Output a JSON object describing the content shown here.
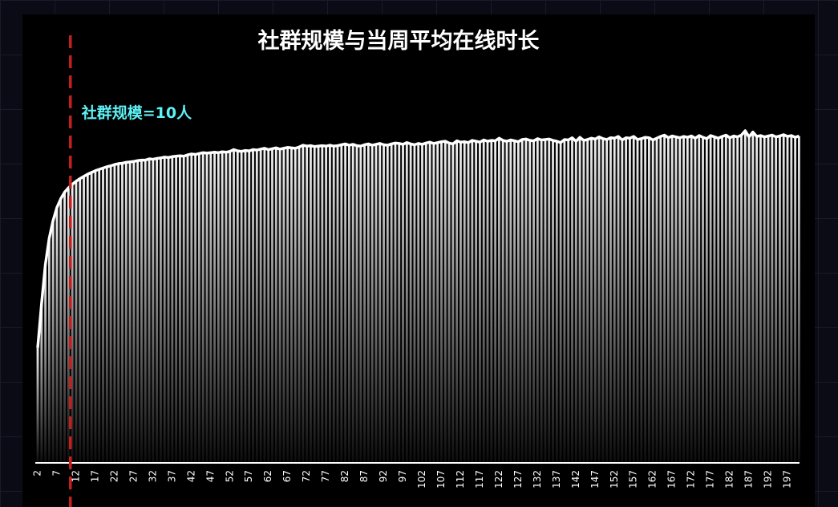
{
  "chart_data": {
    "type": "bar-line",
    "title": "社群规模与当周平均在线时长",
    "color": "#ffffff",
    "annotation": {
      "text": "社群规模=10人",
      "x": 10,
      "line_color": "#c81e1e",
      "text_color": "#5ef2f5"
    },
    "categories": [
      "2",
      null,
      null,
      null,
      null,
      "7",
      null,
      null,
      null,
      null,
      "12",
      null,
      null,
      null,
      null,
      "17",
      null,
      null,
      null,
      null,
      "22",
      null,
      null,
      null,
      null,
      "27",
      null,
      null,
      null,
      null,
      "32",
      null,
      null,
      null,
      null,
      "37",
      null,
      null,
      null,
      null,
      "42",
      null,
      null,
      null,
      null,
      "47",
      null,
      null,
      null,
      null,
      "52",
      null,
      null,
      null,
      null,
      "57",
      null,
      null,
      null,
      null,
      "62",
      null,
      null,
      null,
      null,
      "67",
      null,
      null,
      null,
      null,
      "72",
      null,
      null,
      null,
      null,
      "77",
      null,
      null,
      null,
      null,
      "82",
      null,
      null,
      null,
      null,
      "87",
      null,
      null,
      null,
      null,
      "92",
      null,
      null,
      null,
      null,
      "97",
      null,
      null,
      null,
      null,
      "102",
      null,
      null,
      null,
      null,
      "107",
      null,
      null,
      null,
      null,
      "112",
      null,
      null,
      null,
      null,
      "117",
      null,
      null,
      null,
      null,
      "122",
      null,
      null,
      null,
      null,
      "127",
      null,
      null,
      null,
      null,
      "132",
      null,
      null,
      null,
      null,
      "137",
      null,
      null,
      null,
      null,
      "142",
      null,
      null,
      null,
      null,
      "147",
      null,
      null,
      null,
      null,
      "152",
      null,
      null,
      null,
      null,
      "157",
      null,
      null,
      null,
      null,
      "162",
      null,
      null,
      null,
      null,
      "167",
      null,
      null,
      null,
      null,
      "172",
      null,
      null,
      null,
      null,
      "177",
      null,
      null,
      null,
      null,
      "182",
      null,
      null,
      null,
      null,
      "187",
      null,
      null,
      null,
      null,
      "192",
      null,
      null,
      null,
      null,
      "197",
      null,
      null,
      null
    ],
    "values": [
      26,
      36,
      45,
      51,
      55,
      58,
      60,
      61.5,
      62.5,
      63.3,
      64,
      64.6,
      65.1,
      65.6,
      66,
      66.4,
      66.7,
      67,
      67.3,
      67.5,
      67.8,
      68,
      68.1,
      68.3,
      68.4,
      68.5,
      68.7,
      68.8,
      68.8,
      69.1,
      69,
      69.2,
      69.3,
      69.5,
      69.4,
      69.6,
      69.7,
      69.8,
      69.7,
      70,
      70.2,
      70.1,
      70.3,
      70.5,
      70.4,
      70.5,
      70.6,
      70.5,
      70.7,
      70.6,
      70.8,
      71.2,
      70.9,
      70.8,
      71,
      70.9,
      71.2,
      71.1,
      71.3,
      71.5,
      71.2,
      71.4,
      71.6,
      71.3,
      71.5,
      71.7,
      71.6,
      71.5,
      71.8,
      72.2,
      72,
      72.1,
      71.9,
      72,
      72.1,
      72,
      72.2,
      72,
      72.1,
      72.3,
      72.5,
      72.2,
      72.4,
      72.1,
      72,
      72.3,
      72.5,
      72.2,
      72.4,
      72.6,
      72.3,
      72.2,
      72.5,
      72.7,
      72.6,
      72.4,
      72.8,
      72.5,
      72.3,
      72.6,
      72.4,
      72.7,
      72.9,
      72.6,
      72.8,
      73,
      73.1,
      72.7,
      72.5,
      73.2,
      72.9,
      73,
      72.8,
      73.3,
      73.1,
      72.9,
      73.4,
      73.1,
      73.3,
      73.2,
      73.8,
      73.3,
      73.1,
      73.4,
      73.2,
      73,
      73.5,
      73.6,
      73.3,
      73.2,
      73.7,
      73.4,
      73.5,
      73.6,
      73.3,
      73.1,
      72.8,
      73.5,
      73.4,
      73.9,
      73.1,
      74,
      73.3,
      73.5,
      73.8,
      73.6,
      74.1,
      73.7,
      73.5,
      73.9,
      73.8,
      74.2,
      73.4,
      73.9,
      73.8,
      74.2,
      73.5,
      73.7,
      74,
      73.9,
      73.4,
      73.8,
      74.2,
      74.5,
      73.9,
      74.3,
      74.1,
      73.9,
      74.2,
      74,
      74.3,
      73.8,
      74.4,
      74,
      73.7,
      74.4,
      74.1,
      73.8,
      74.2,
      74.5,
      73.9,
      74.3,
      74.1,
      74.5,
      75.5,
      74.1,
      75.2,
      74.2,
      74.4,
      74.1,
      74.3,
      74.5,
      74.1,
      74.3,
      74.6,
      74.2,
      74.4,
      74,
      74.3
    ]
  }
}
